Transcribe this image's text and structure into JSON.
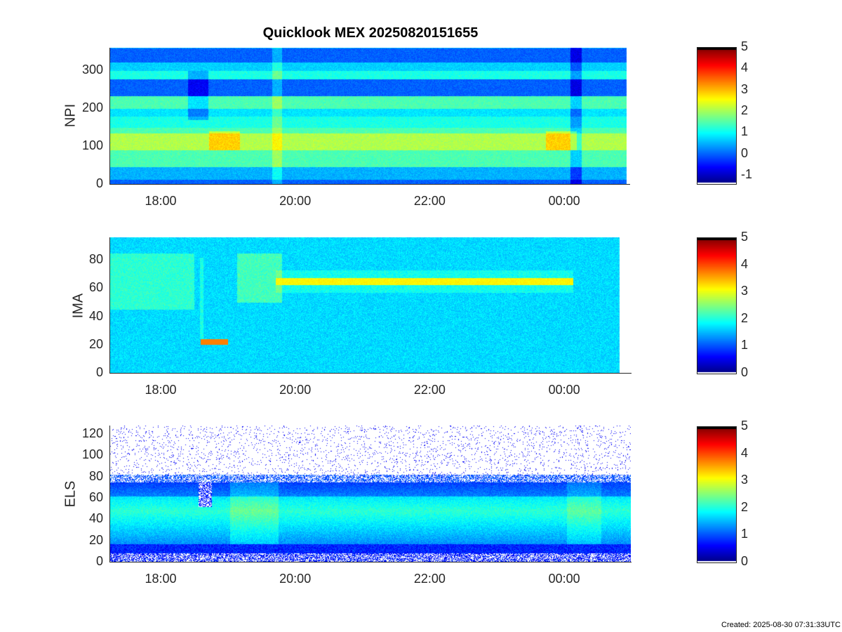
{
  "title": "Quicklook MEX 20250820151655",
  "footer": "Created: 2025-08-30 07:31:33UTC",
  "chart_data": [
    {
      "type": "heatmap",
      "ylabel": "NPI",
      "xticks": [
        "18:00",
        "20:00",
        "22:00",
        "00:00"
      ],
      "yticks": [
        "0",
        "100",
        "200",
        "300"
      ],
      "ylim": [
        0,
        360
      ],
      "xrange": [
        "17:15",
        "00:55"
      ],
      "colorbar": {
        "ticks": [
          "-1",
          "0",
          "1",
          "2",
          "3",
          "4",
          "5"
        ],
        "range": [
          -1.4,
          5
        ],
        "colormap": "jet"
      }
    },
    {
      "type": "heatmap",
      "ylabel": "IMA",
      "xticks": [
        "18:00",
        "20:00",
        "22:00",
        "00:00"
      ],
      "yticks": [
        "0",
        "20",
        "40",
        "60",
        "80"
      ],
      "ylim": [
        0,
        96
      ],
      "xrange": [
        "17:15",
        "00:55"
      ],
      "colorbar": {
        "ticks": [
          "0",
          "1",
          "2",
          "3",
          "4",
          "5"
        ],
        "range": [
          0,
          5
        ],
        "colormap": "jet"
      }
    },
    {
      "type": "heatmap",
      "ylabel": "ELS",
      "xticks": [
        "18:00",
        "20:00",
        "22:00",
        "00:00"
      ],
      "yticks": [
        "0",
        "20",
        "40",
        "60",
        "80",
        "100",
        "120"
      ],
      "ylim": [
        0,
        128
      ],
      "xrange": [
        "17:15",
        "00:55"
      ],
      "colorbar": {
        "ticks": [
          "0",
          "1",
          "2",
          "3",
          "4",
          "5"
        ],
        "range": [
          0,
          5
        ],
        "colormap": "jet"
      }
    }
  ]
}
